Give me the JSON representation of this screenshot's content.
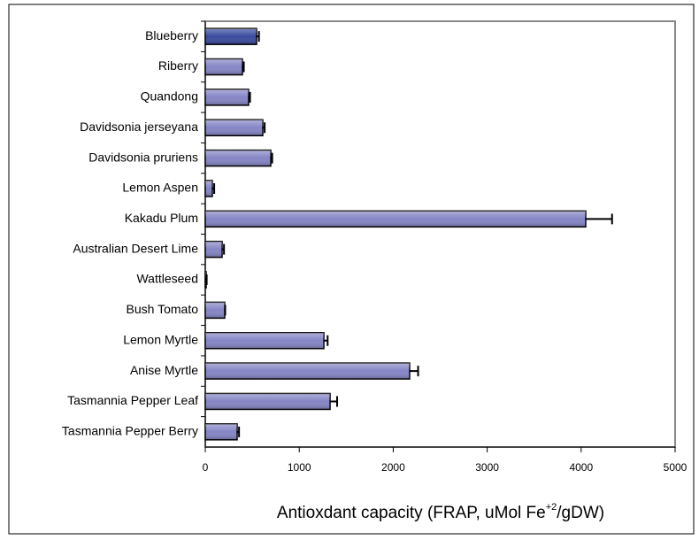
{
  "chart_data": {
    "type": "bar",
    "orientation": "horizontal",
    "xlabel": "Antioxdant capacity (FRAP, uMol Fe",
    "xlabel_sup": "+2",
    "xlabel_end": "/gDW)",
    "categories": [
      "Blueberry",
      "Riberry",
      "Quandong",
      "Davidsonia jerseyana",
      "Davidsonia pruriens",
      "Lemon Aspen",
      "Kakadu Plum",
      "Australian Desert Lime",
      "Wattleseed",
      "Bush Tomato",
      "Lemon Myrtle",
      "Anise Myrtle",
      "Tasmannia Pepper Leaf",
      "Tasmannia Pepper Berry"
    ],
    "values": [
      546,
      395,
      461,
      612,
      697,
      75,
      4049,
      179,
      10,
      207,
      1262,
      2175,
      1328,
      339
    ],
    "errors": [
      25,
      15,
      15,
      20,
      15,
      20,
      280,
      20,
      5,
      5,
      40,
      90,
      75,
      20
    ],
    "colors": [
      "#3a4a9e",
      "#8585c6",
      "#8585c6",
      "#8585c6",
      "#8585c6",
      "#8585c6",
      "#8585c6",
      "#8585c6",
      "#8585c6",
      "#8585c6",
      "#8585c6",
      "#8585c6",
      "#8585c6",
      "#8585c6"
    ],
    "xlim": [
      0,
      5000
    ],
    "xticks": [
      0,
      1000,
      2000,
      3000,
      4000,
      5000
    ],
    "grid": false
  }
}
